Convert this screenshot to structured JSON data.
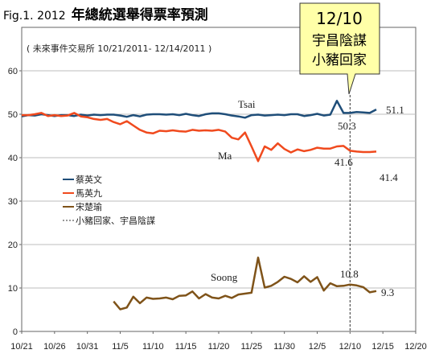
{
  "chart_data": {
    "type": "line",
    "title_prefix": "Fig.1. 2012",
    "title_main": "年總統選舉得票率預測",
    "subtitle": "( 未來事件交易所 10/21/2011- 12/14/2011 )",
    "x_tick_labels": [
      "10/21",
      "10/26",
      "10/31",
      "11/5",
      "11/10",
      "11/15",
      "11/20",
      "11/25",
      "11/30",
      "12/5",
      "12/10",
      "12/15",
      "12/20"
    ],
    "x_range_days": [
      0,
      60
    ],
    "y_ticks": [
      0,
      10,
      20,
      30,
      40,
      50,
      60
    ],
    "ylim": [
      0,
      65
    ],
    "grid": true,
    "legend_placement": "left-middle",
    "legend": [
      {
        "label": "蔡英文",
        "color": "#1f4e79",
        "style": "solid"
      },
      {
        "label": "馬英九",
        "color": "#f04a1e",
        "style": "solid"
      },
      {
        "label": "宋楚瑜",
        "color": "#7f5319",
        "style": "solid"
      },
      {
        "label": "小豬回家、宇昌陰謀",
        "color": "#333333",
        "style": "dashed"
      }
    ],
    "event_marker_day": 50,
    "callout": {
      "line1": "12/10",
      "line2": "宇昌陰謀",
      "line3": "小豬回家"
    },
    "series": [
      {
        "name": "Tsai",
        "color": "#1f4e79",
        "x": [
          0,
          1,
          2,
          3,
          4,
          5,
          6,
          7,
          8,
          9,
          10,
          11,
          12,
          13,
          14,
          15,
          16,
          17,
          18,
          19,
          20,
          21,
          22,
          23,
          24,
          25,
          26,
          27,
          28,
          29,
          30,
          31,
          32,
          33,
          34,
          35,
          36,
          37,
          38,
          39,
          40,
          41,
          42,
          43,
          44,
          45,
          46,
          47,
          48,
          49,
          50,
          51,
          52,
          53,
          54
        ],
        "values": [
          49.5,
          49.8,
          49.7,
          50.0,
          49.8,
          49.6,
          49.8,
          49.8,
          49.6,
          49.9,
          49.7,
          49.9,
          49.8,
          49.9,
          49.9,
          49.7,
          49.4,
          49.8,
          49.5,
          49.9,
          50.0,
          50.0,
          49.9,
          50.0,
          49.8,
          50.1,
          49.8,
          49.6,
          50.0,
          50.2,
          50.2,
          50.0,
          49.7,
          49.5,
          49.2,
          49.8,
          49.9,
          49.7,
          49.8,
          49.9,
          49.8,
          50.0,
          50.0,
          49.6,
          49.8,
          50.1,
          49.7,
          49.9,
          53.1,
          50.3,
          50.3,
          50.5,
          50.4,
          50.3,
          51.1
        ]
      },
      {
        "name": "Ma",
        "color": "#f04a1e",
        "x": [
          0,
          1,
          2,
          3,
          4,
          5,
          6,
          7,
          8,
          9,
          10,
          11,
          12,
          13,
          14,
          15,
          16,
          17,
          18,
          19,
          20,
          21,
          22,
          23,
          24,
          25,
          26,
          27,
          28,
          29,
          30,
          31,
          32,
          33,
          34,
          35,
          36,
          37,
          38,
          39,
          40,
          41,
          42,
          43,
          44,
          45,
          46,
          47,
          48,
          49,
          50,
          51,
          52,
          53,
          54
        ],
        "values": [
          49.8,
          49.8,
          50.0,
          50.3,
          49.6,
          49.8,
          49.6,
          49.7,
          50.3,
          49.5,
          49.3,
          48.9,
          48.7,
          48.9,
          48.2,
          47.7,
          48.4,
          47.4,
          46.4,
          45.8,
          45.6,
          46.2,
          46.1,
          46.3,
          46.1,
          46.0,
          46.4,
          46.2,
          46.3,
          46.2,
          46.4,
          46.0,
          44.6,
          44.2,
          45.8,
          42.6,
          39.2,
          42.6,
          41.8,
          43.3,
          42.0,
          41.2,
          41.9,
          41.5,
          41.8,
          42.3,
          42.1,
          42.1,
          42.6,
          42.7,
          41.6,
          41.4,
          41.3,
          41.3,
          41.4
        ]
      },
      {
        "name": "Soong",
        "color": "#7f5319",
        "x": [
          14,
          15,
          16,
          17,
          18,
          19,
          20,
          21,
          22,
          23,
          24,
          25,
          26,
          27,
          28,
          29,
          30,
          31,
          32,
          33,
          34,
          35,
          36,
          37,
          38,
          39,
          40,
          41,
          42,
          43,
          44,
          45,
          46,
          47,
          48,
          49,
          50,
          51,
          52,
          53,
          54
        ],
        "values": [
          6.9,
          5.1,
          5.5,
          8.0,
          6.5,
          7.8,
          7.5,
          7.6,
          7.8,
          7.4,
          8.2,
          8.3,
          9.2,
          7.6,
          8.6,
          7.8,
          7.6,
          8.2,
          7.7,
          8.5,
          8.7,
          8.9,
          17.0,
          10.1,
          10.5,
          11.4,
          12.6,
          12.1,
          11.3,
          12.7,
          11.4,
          12.5,
          9.4,
          11.1,
          10.4,
          10.5,
          10.8,
          10.6,
          10.2,
          9.0,
          9.3
        ]
      }
    ],
    "annotations": {
      "tsai_label": "Tsai",
      "ma_label": "Ma",
      "soong_label": "Soong",
      "tsai_end": "51.1",
      "tsai_event": "50.3",
      "ma_end": "41.4",
      "ma_event": "41.6",
      "soong_end": "9.3",
      "soong_event": "10.8"
    }
  }
}
